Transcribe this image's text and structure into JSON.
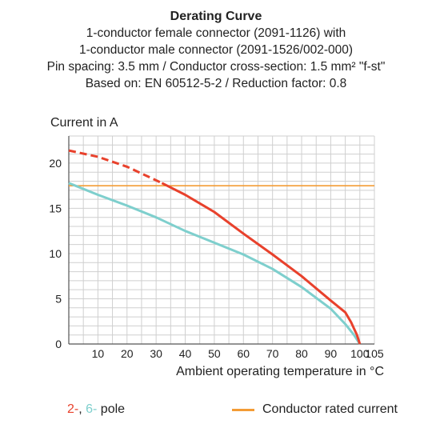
{
  "chart_data": {
    "type": "line",
    "title": "Derating Curve",
    "subtitle_lines": [
      "1-conductor female connector (2091-1126) with",
      "1-conductor male connector (2091-1526/002-000)",
      "Pin spacing: 3.5 mm / Conductor cross-section: 1.5 mm² \"f-st\"",
      "Based on: EN 60512-5-2 / Reduction factor: 0.8"
    ],
    "ylabel": "Current in A",
    "xlabel": "Ambient operating temperature in °C",
    "xlim": [
      0,
      105
    ],
    "ylim": [
      0,
      23
    ],
    "x_ticks": [
      10,
      20,
      30,
      40,
      50,
      60,
      70,
      80,
      90,
      100,
      105
    ],
    "y_ticks": [
      0,
      5,
      10,
      15,
      20
    ],
    "grid": true,
    "series": [
      {
        "name": "2-pole",
        "color": "#e8412c",
        "dashed_until_x": 32,
        "points": [
          [
            0,
            21.4
          ],
          [
            10,
            20.7
          ],
          [
            20,
            19.6
          ],
          [
            32,
            17.8
          ],
          [
            40,
            16.5
          ],
          [
            50,
            14.6
          ],
          [
            60,
            12.2
          ],
          [
            70,
            9.9
          ],
          [
            80,
            7.5
          ],
          [
            90,
            4.8
          ],
          [
            95,
            3.5
          ],
          [
            97,
            2.4
          ],
          [
            99,
            1.0
          ],
          [
            100,
            0
          ]
        ]
      },
      {
        "name": "6-pole",
        "color": "#7ecfcd",
        "points": [
          [
            0,
            17.8
          ],
          [
            10,
            16.5
          ],
          [
            20,
            15.3
          ],
          [
            30,
            14.0
          ],
          [
            40,
            12.5
          ],
          [
            50,
            11.2
          ],
          [
            60,
            9.9
          ],
          [
            70,
            8.3
          ],
          [
            80,
            6.3
          ],
          [
            90,
            3.9
          ],
          [
            95,
            2.2
          ],
          [
            98,
            1.0
          ],
          [
            100,
            0
          ]
        ]
      },
      {
        "name": "Conductor rated current",
        "color": "#f39c35",
        "points": [
          [
            0,
            17.5
          ],
          [
            105,
            17.5
          ]
        ]
      }
    ]
  },
  "legend": {
    "left_prefix_a": "2-",
    "left_sep": ", ",
    "left_prefix_b": "6-",
    "left_suffix": " pole",
    "right_label": "Conductor rated current",
    "color_a": "#e8412c",
    "color_b": "#7ecfcd",
    "color_rated": "#f39c35"
  }
}
